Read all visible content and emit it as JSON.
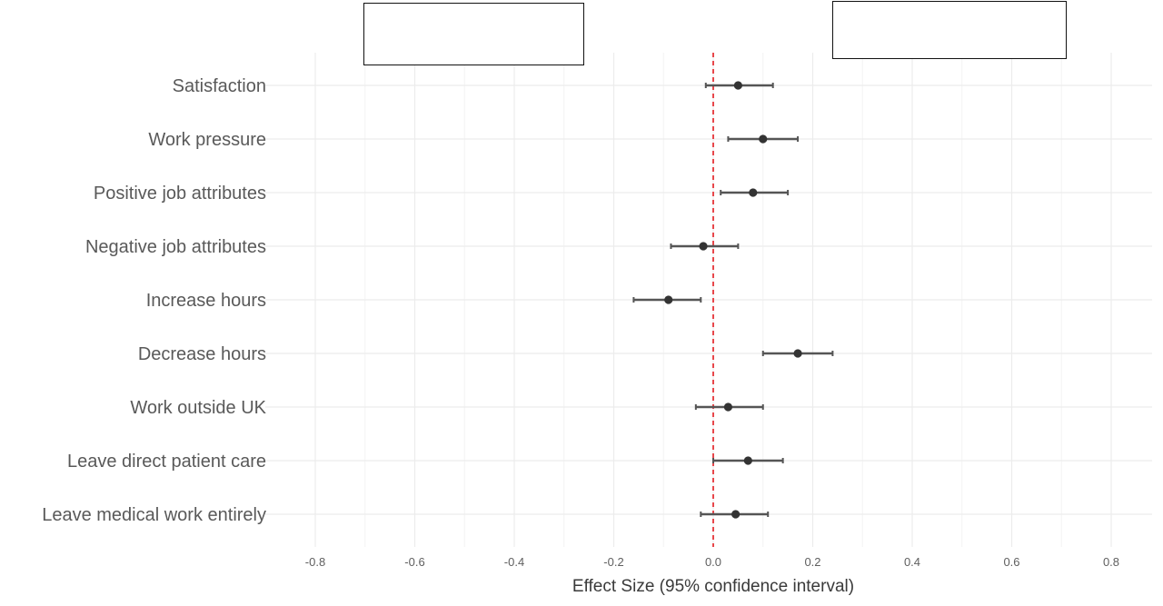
{
  "chart_data": {
    "type": "forest",
    "title": "",
    "xlabel": "Effect Size (95% confidence interval)",
    "ylabel": "",
    "xlim": [
      -0.8,
      0.8
    ],
    "x_ticks": [
      "-0.8",
      "-0.6",
      "-0.4",
      "-0.2",
      "0.0",
      "0.2",
      "0.4",
      "0.6",
      "0.8"
    ],
    "reference_line": {
      "x": 0.0,
      "style": "dashed",
      "color": "#e8474b"
    },
    "grid": true,
    "point_color": "#333333",
    "ci_color": "#555555",
    "categories": [
      "Satisfaction",
      "Work pressure",
      "Positive job attributes",
      "Negative job attributes",
      "Increase hours",
      "Decrease hours",
      "Work outside UK",
      "Leave direct patient care",
      "Leave medical work entirely"
    ],
    "estimates": [
      0.05,
      0.1,
      0.08,
      -0.02,
      -0.09,
      0.17,
      0.03,
      0.07,
      0.045
    ],
    "ci_low": [
      -0.015,
      0.03,
      0.015,
      -0.085,
      -0.16,
      0.1,
      -0.035,
      0.0,
      -0.025
    ],
    "ci_high": [
      0.12,
      0.17,
      0.15,
      0.05,
      -0.025,
      0.24,
      0.1,
      0.14,
      0.11
    ],
    "legend_boxes": [
      "",
      ""
    ]
  }
}
